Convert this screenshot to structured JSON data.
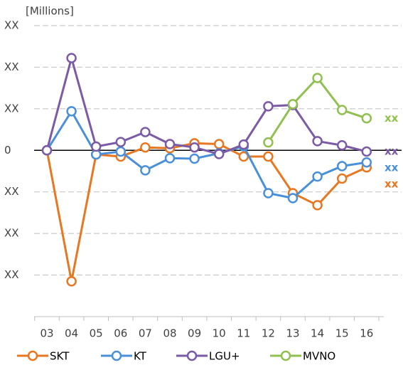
{
  "chart_data": {
    "type": "line",
    "y_axis_label": "[Millions]",
    "categories": [
      "03",
      "04",
      "05",
      "06",
      "07",
      "08",
      "09",
      "10",
      "11",
      "12",
      "13",
      "14",
      "15",
      "16"
    ],
    "ylim": [
      -4,
      3
    ],
    "yticks": [
      {
        "value": 3,
        "label": "XX"
      },
      {
        "value": 2,
        "label": "XX"
      },
      {
        "value": 1,
        "label": "XX"
      },
      0,
      {
        "value": -1,
        "label": "XX"
      },
      {
        "value": -2,
        "label": "XX"
      },
      {
        "value": -3,
        "label": "XX"
      }
    ],
    "grid": true,
    "legend": "bottom",
    "series": [
      {
        "name": "SKT",
        "color": "#e87722",
        "end_label": "xx",
        "values": [
          0,
          -3.15,
          -0.1,
          -0.15,
          0.07,
          0.05,
          0.17,
          0.15,
          -0.15,
          -0.15,
          -1.03,
          -1.32,
          -0.68,
          -0.41
        ]
      },
      {
        "name": "KT",
        "color": "#4a90d9",
        "end_label": "xx",
        "values": [
          0,
          0.94,
          -0.1,
          -0.03,
          -0.48,
          -0.19,
          -0.2,
          -0.07,
          0.1,
          -1.03,
          -1.15,
          -0.63,
          -0.38,
          -0.29
        ]
      },
      {
        "name": "LGU+",
        "color": "#7b5aa6",
        "end_label": "xx",
        "values": [
          0,
          2.22,
          0.09,
          0.2,
          0.44,
          0.15,
          0.07,
          -0.09,
          0.14,
          1.06,
          1.09,
          0.22,
          0.12,
          -0.03
        ]
      },
      {
        "name": "MVNO",
        "color": "#92c050",
        "end_label": "xx",
        "values": [
          null,
          null,
          null,
          null,
          null,
          null,
          null,
          null,
          null,
          0.19,
          1.11,
          1.74,
          0.97,
          0.77
        ]
      }
    ]
  }
}
